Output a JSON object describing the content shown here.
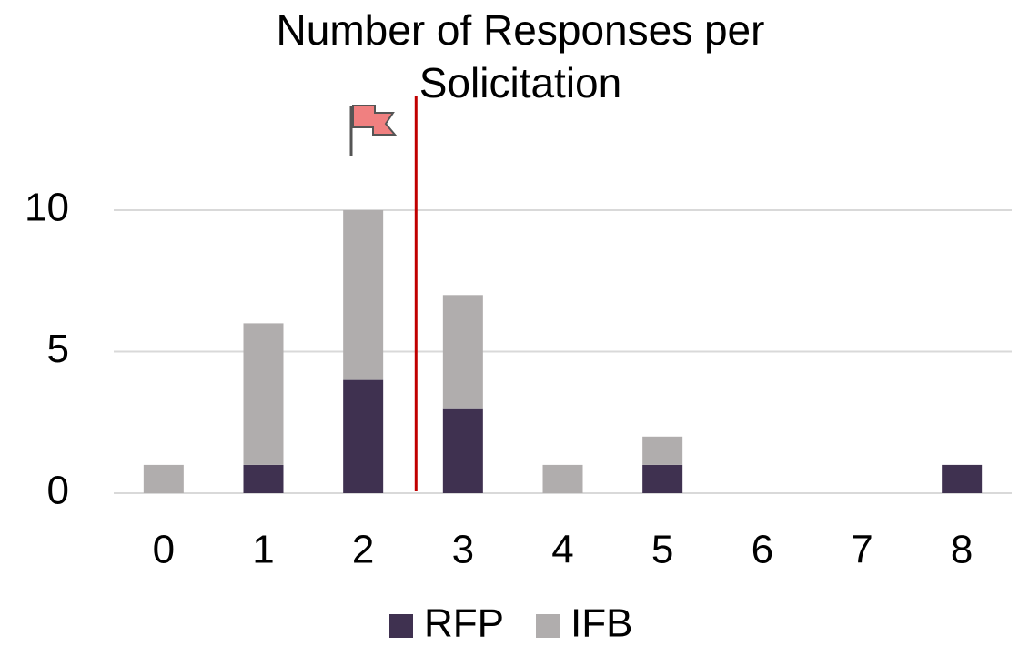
{
  "chart_data": {
    "type": "bar",
    "stacked": true,
    "title": "Number of Responses per Solicitation",
    "categories": [
      "0",
      "1",
      "2",
      "3",
      "4",
      "5",
      "6",
      "7",
      "8"
    ],
    "series": [
      {
        "name": "RFP",
        "color": "#3f3150",
        "values": [
          0,
          1,
          4,
          3,
          0,
          1,
          0,
          0,
          1
        ]
      },
      {
        "name": "IFB",
        "color": "#b0adad",
        "values": [
          1,
          5,
          6,
          4,
          1,
          1,
          0,
          0,
          0
        ]
      }
    ],
    "ylim": [
      0,
      12
    ],
    "yticks": [
      0,
      5,
      10
    ],
    "grid": true,
    "legend": "bottom",
    "reference_line": {
      "value": 2.53,
      "color": "#c00000"
    }
  }
}
